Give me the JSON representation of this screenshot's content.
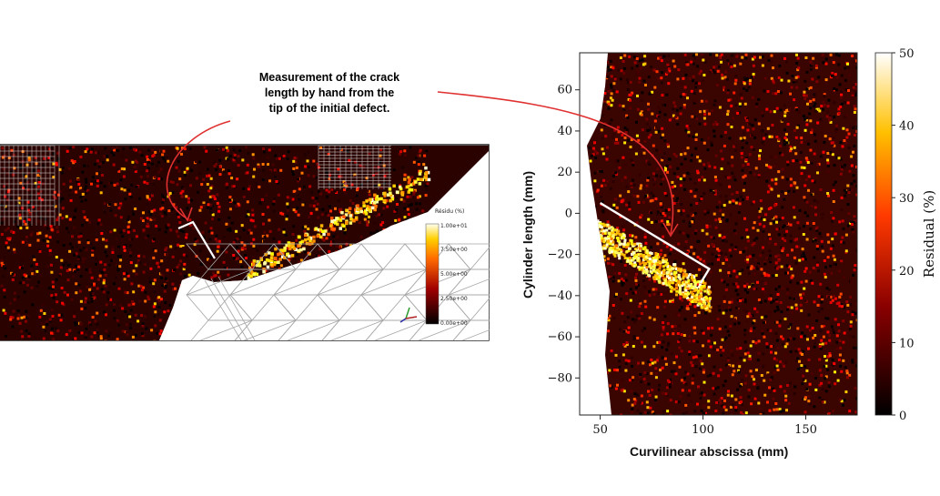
{
  "annotation": {
    "lines": [
      "Measurement of the crack",
      "length by hand from the",
      "tip of the initial defect."
    ]
  },
  "left_panel": {
    "colorbar_title": "Résidu (%)",
    "colorbar_ticks": [
      "1.00e+01",
      "7.50e+00",
      "5.00e+00",
      "2.50e+00",
      "0.00e+00"
    ],
    "colors": {
      "mesh": "#9a9a9a",
      "crack_marker": "#ffffff",
      "arrow": "#e03030"
    }
  },
  "chart_data": {
    "type": "heatmap",
    "title": "",
    "xlabel": "Curvilinear abscissa (mm)",
    "ylabel": "Cylinder length (mm)",
    "xlim": [
      40,
      175
    ],
    "ylim": [
      -98,
      78
    ],
    "xticks": [
      50,
      100,
      150
    ],
    "yticks": [
      60,
      40,
      20,
      0,
      -20,
      -40,
      -60,
      -80
    ],
    "colorbar": {
      "label": "Residual (%)",
      "range": [
        0,
        50
      ],
      "ticks": [
        0,
        10,
        20,
        30,
        40,
        50
      ]
    },
    "colormap": "hot",
    "annotations": [
      {
        "type": "crack-measurement-bracket",
        "from": [
          50,
          5
        ],
        "to": [
          103,
          -27
        ]
      }
    ]
  }
}
